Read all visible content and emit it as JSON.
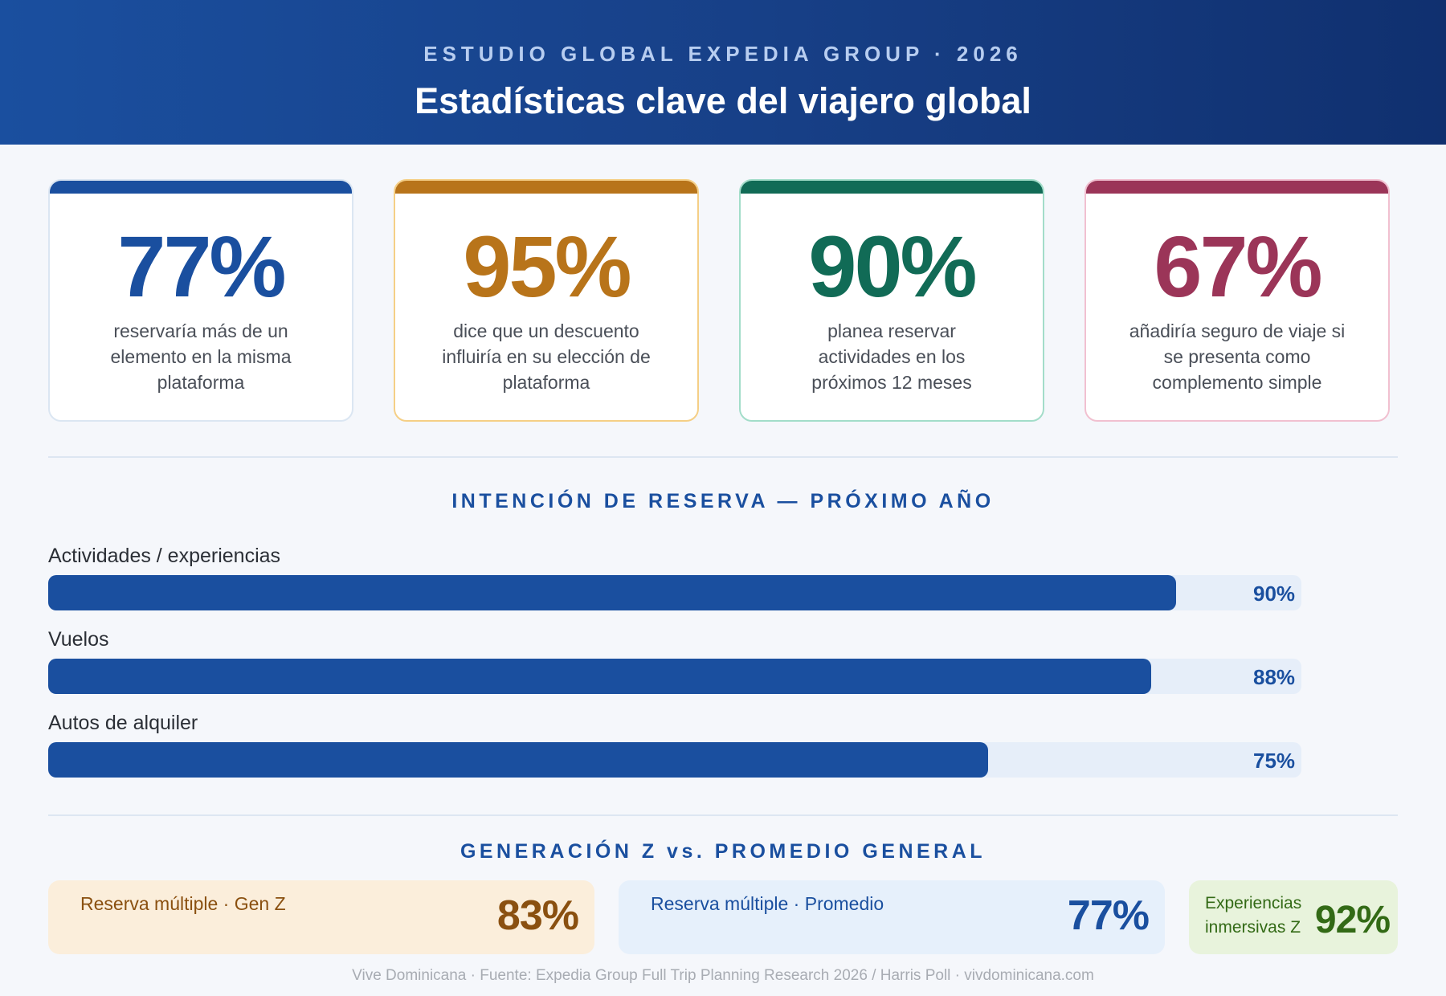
{
  "header": {
    "eyebrow": "ESTUDIO GLOBAL EXPEDIA GROUP · 2026",
    "title": "Estadísticas clave del viajero global"
  },
  "stat_cards": [
    {
      "value": "77%",
      "text": "reservaría más de un elemento en la misma plataforma",
      "accent": "#1a4f9f",
      "border": "#dbe6f2"
    },
    {
      "value": "95%",
      "text": "dice que un descuento influiría en su elección de plataforma",
      "accent": "#b8741a",
      "border": "#f5cf86"
    },
    {
      "value": "90%",
      "text": "planea reservar actividades en los próximos 12 meses",
      "accent": "#116b56",
      "border": "#a3ddc9"
    },
    {
      "value": "67%",
      "text": "añadiría seguro de viaje si se presenta como complemento simple",
      "accent": "#9b3558",
      "border": "#f1c0d0"
    }
  ],
  "booking_intent": {
    "title": "INTENCIÓN DE RESERVA — PRÓXIMO AÑO",
    "bars": [
      {
        "label": "Actividades / experiencias",
        "value": 90,
        "display": "90%"
      },
      {
        "label": "Vuelos",
        "value": 88,
        "display": "88%"
      },
      {
        "label": "Autos de alquiler",
        "value": 75,
        "display": "75%"
      }
    ],
    "fill_color": "#1a4f9f"
  },
  "gen_z": {
    "title": "GENERACIÓN Z vs. PROMEDIO GENERAL",
    "items": [
      {
        "label": "Reserva múltiple · Gen Z",
        "value": "83%",
        "bg": "#fbeedb",
        "color": "#8a5010"
      },
      {
        "label": "Reserva múltiple · Promedio",
        "value": "77%",
        "bg": "#e6f0fb",
        "color": "#1a4f9f"
      },
      {
        "label_line1": "Experiencias",
        "label_line2": "inmersivas Z",
        "value": "92%",
        "bg": "#e8f3dc",
        "color": "#336a16"
      }
    ]
  },
  "footer": "Vive Dominicana · Fuente: Expedia Group Full Trip Planning Research 2026 / Harris Poll · vivdominicana.com"
}
